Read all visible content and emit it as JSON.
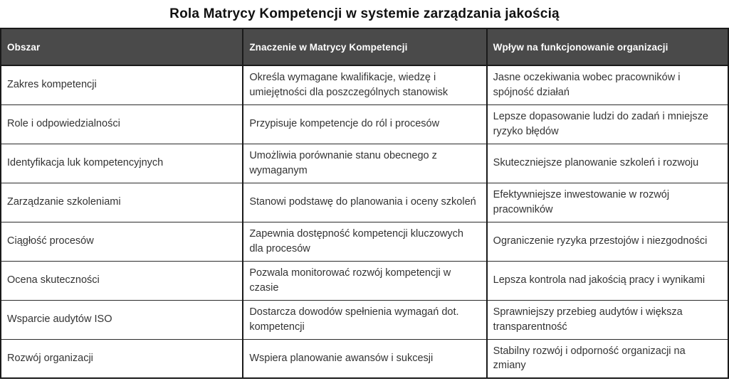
{
  "title": "Rola Matrycy Kompetencji w systemie zarządzania jakością",
  "chart_data": {
    "type": "table",
    "title": "Rola Matrycy Kompetencji w systemie zarządzania jakością",
    "headers": [
      "Obszar",
      "Znaczenie w Matrycy Kompetencji",
      "Wpływ na funkcjonowanie organizacji"
    ],
    "rows": [
      [
        "Zakres kompetencji",
        "Określa wymagane kwalifikacje, wiedzę i umiejętności dla poszczególnych stanowisk",
        "Jasne oczekiwania wobec pracowników i spójność działań"
      ],
      [
        "Role i odpowiedzialności",
        "Przypisuje kompetencje do ról i procesów",
        "Lepsze dopasowanie ludzi do zadań i mniejsze ryzyko błędów"
      ],
      [
        "Identyfikacja luk kompetencyjnych",
        "Umożliwia porównanie stanu obecnego z wymaganym",
        "Skuteczniejsze planowanie szkoleń i rozwoju"
      ],
      [
        "Zarządzanie szkoleniami",
        "Stanowi podstawę do planowania i oceny szkoleń",
        "Efektywniejsze inwestowanie w rozwój pracowników"
      ],
      [
        "Ciągłość procesów",
        "Zapewnia dostępność kompetencji kluczowych dla procesów",
        "Ograniczenie ryzyka przestojów i niezgodności"
      ],
      [
        "Ocena skuteczności",
        "Pozwala monitorować rozwój kompetencji w czasie",
        "Lepsza kontrola nad jakością pracy i wynikami"
      ],
      [
        "Wsparcie audytów ISO",
        "Dostarcza dowodów spełnienia wymagań dot. kompetencji",
        "Sprawniejszy przebieg audytów i większa transparentność"
      ],
      [
        "Rozwój organizacji",
        "Wspiera planowanie awansów i sukcesji",
        "Stabilny rozwój i odporność organizacji na zmiany"
      ]
    ]
  },
  "colors": {
    "header_bg": "#4a4a4a",
    "header_text": "#ffffff",
    "body_text": "#333333",
    "border_strong": "#1a1a1a",
    "border_thin": "#2b2b2b",
    "page_bg": "#ffffff"
  }
}
